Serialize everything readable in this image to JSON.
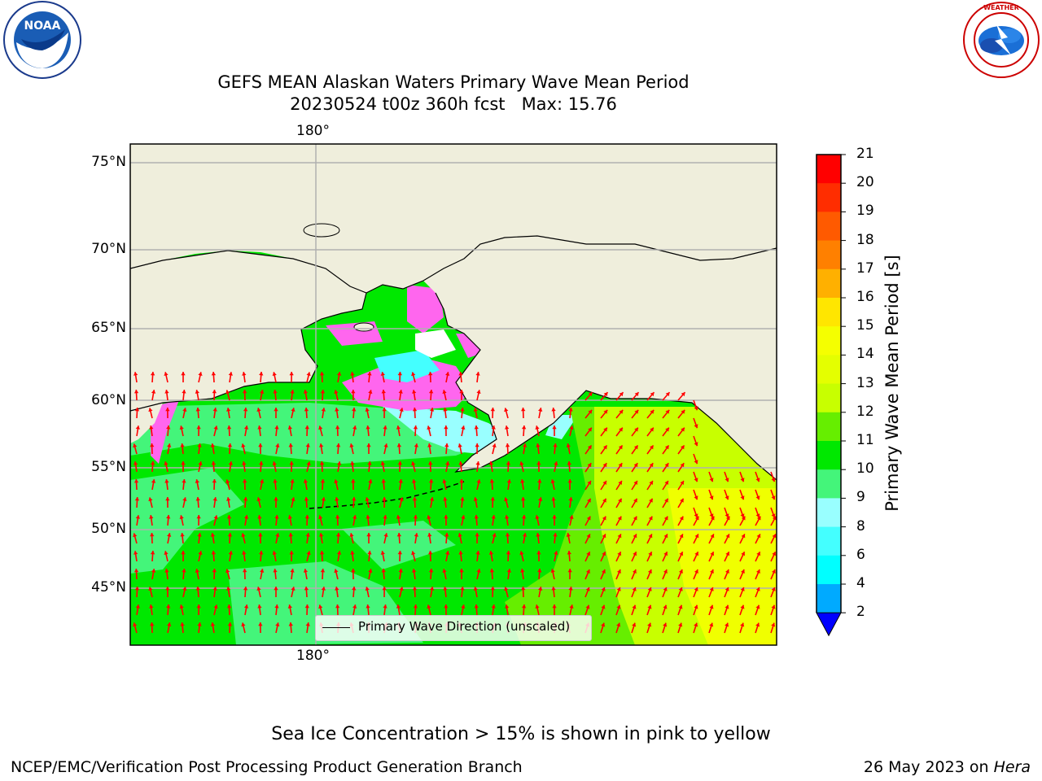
{
  "title": {
    "line1": "GEFS MEAN Alaskan Waters Primary Wave Mean Period",
    "line2": "20230524 t00z 360h fcst   Max: 15.76"
  },
  "logos": {
    "left": {
      "text": "NOAA",
      "ring_text": "NATIONAL OCEANIC AND ATMOSPHERIC ADMINISTRATION · U.S. DEPARTMENT OF COMMERCE"
    },
    "right": {
      "ring_text": "NATIONAL WEATHER SERVICE"
    }
  },
  "map": {
    "lat_labels": [
      "75°N",
      "70°N",
      "65°N",
      "60°N",
      "55°N",
      "50°N",
      "45°N"
    ],
    "lon_label_top": "180°",
    "lon_label_bottom": "180°",
    "legend_label": "Primary Wave Direction (unscaled)",
    "colors": {
      "land": "#efeedc",
      "green": "#00e800",
      "lightgreen": "#44f57a",
      "limegreen": "#66ee00",
      "yellowgreen": "#c8ff00",
      "yellow": "#f0ff00",
      "cyan": "#99ffff",
      "ice_pink": "#ff66ee",
      "arrow": "#ff0000"
    }
  },
  "colorbar": {
    "label": "Primary Wave Mean Period [s]",
    "ticks": [
      "21",
      "20",
      "19",
      "18",
      "17",
      "16",
      "15",
      "14",
      "13",
      "12",
      "11",
      "10",
      "9",
      "8",
      "6",
      "4",
      "2"
    ],
    "colors_top_to_bottom": [
      "#ff0000",
      "#ff2d00",
      "#ff5a00",
      "#ff8000",
      "#ffb000",
      "#ffe600",
      "#f5ff00",
      "#e4ff00",
      "#c8ff00",
      "#66ee00",
      "#00e800",
      "#44f57a",
      "#99ffff",
      "#44ffff",
      "#00ffff",
      "#00aaff",
      "#0000ff"
    ],
    "extend_color": "#0000ff"
  },
  "caption": "Sea Ice Concentration > 15% is shown in pink to yellow",
  "footer": {
    "left": "NCEP/EMC/Verification Post Processing Product Generation Branch",
    "right_date": "26 May 2023 on ",
    "right_host": "Hera"
  }
}
